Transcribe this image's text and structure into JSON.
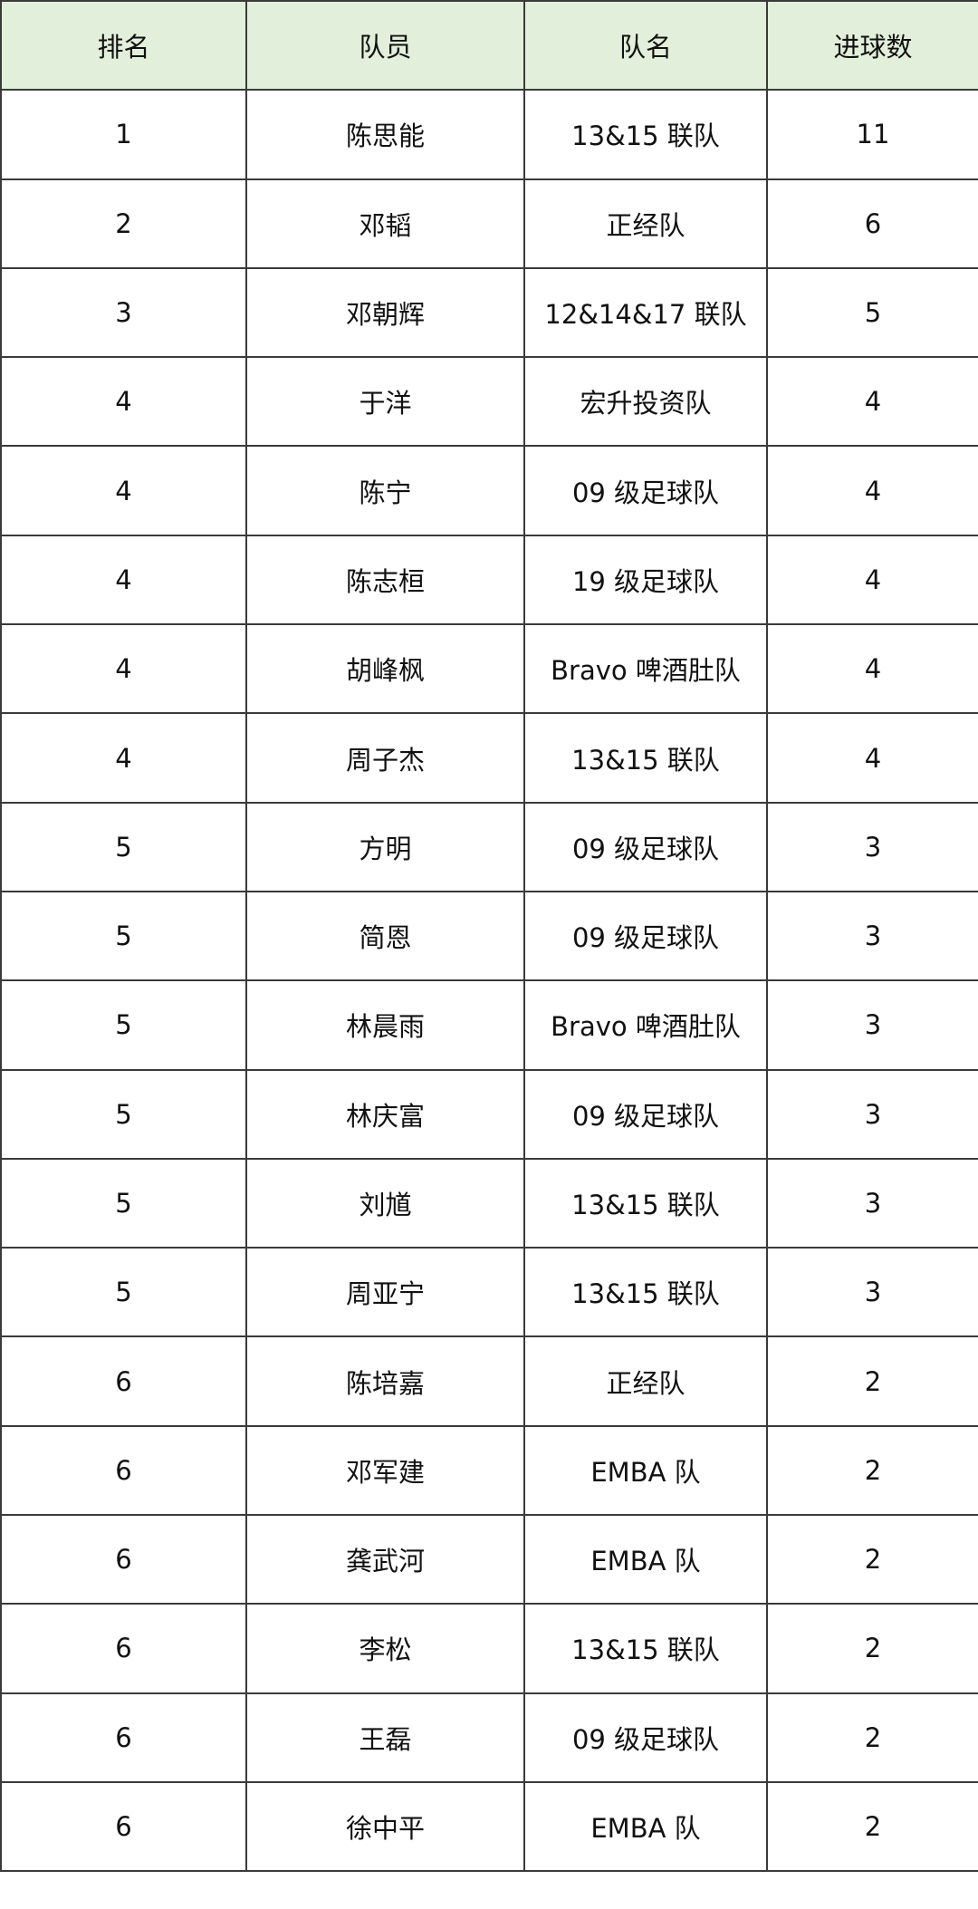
{
  "table": {
    "headers": [
      "排名",
      "队员",
      "队名",
      "进球数"
    ],
    "header_bg": "#e2efda",
    "rows": [
      [
        "1",
        "陈思能",
        "13&15 联队",
        "11"
      ],
      [
        "2",
        "邓韬",
        "正经队",
        "6"
      ],
      [
        "3",
        "邓朝辉",
        "12&14&17 联队",
        "5"
      ],
      [
        "4",
        "于洋",
        "宏升投资队",
        "4"
      ],
      [
        "4",
        "陈宁",
        "09 级足球队",
        "4"
      ],
      [
        "4",
        "陈志桓",
        "19 级足球队",
        "4"
      ],
      [
        "4",
        "胡峰枫",
        "Bravo 啤酒肚队",
        "4"
      ],
      [
        "4",
        "周子杰",
        "13&15 联队",
        "4"
      ],
      [
        "5",
        "方明",
        "09 级足球队",
        "3"
      ],
      [
        "5",
        "简恩",
        "09 级足球队",
        "3"
      ],
      [
        "5",
        "林晨雨",
        "Bravo 啤酒肚队",
        "3"
      ],
      [
        "5",
        "林庆富",
        "09 级足球队",
        "3"
      ],
      [
        "5",
        "刘馗",
        "13&15 联队",
        "3"
      ],
      [
        "5",
        "周亚宁",
        "13&15 联队",
        "3"
      ],
      [
        "6",
        "陈培嘉",
        "正经队",
        "2"
      ],
      [
        "6",
        "邓军建",
        "EMBA 队",
        "2"
      ],
      [
        "6",
        "龚武河",
        "EMBA 队",
        "2"
      ],
      [
        "6",
        "李松",
        "13&15 联队",
        "2"
      ],
      [
        "6",
        "王磊",
        "09 级足球队",
        "2"
      ],
      [
        "6",
        "徐中平",
        "EMBA 队",
        "2"
      ]
    ]
  }
}
